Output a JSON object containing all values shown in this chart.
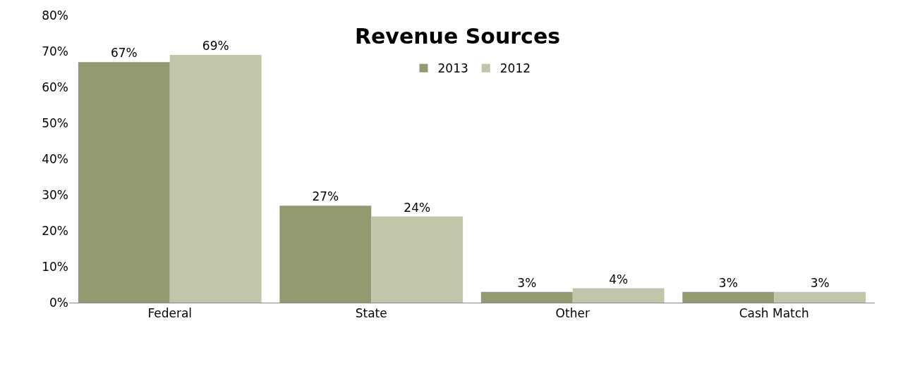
{
  "chart_data": {
    "type": "bar",
    "title": "Revenue Sources",
    "categories": [
      "Federal",
      "State",
      "Other",
      "Cash Match"
    ],
    "series": [
      {
        "name": "2013",
        "color": "#939a70",
        "values": [
          67,
          27,
          3,
          3
        ],
        "value_labels": [
          "67%",
          "27%",
          "3%",
          "3%"
        ]
      },
      {
        "name": "2012",
        "color": "#c2c5aa",
        "values": [
          69,
          24,
          4,
          3
        ],
        "value_labels": [
          "69%",
          "24%",
          "4%",
          "3%"
        ]
      }
    ],
    "ylim": [
      0,
      80
    ],
    "yticks": [
      {
        "value": 0,
        "label": "0%"
      },
      {
        "value": 10,
        "label": "10%"
      },
      {
        "value": 20,
        "label": "20%"
      },
      {
        "value": 30,
        "label": "30%"
      },
      {
        "value": 40,
        "label": "40%"
      },
      {
        "value": 50,
        "label": "50%"
      },
      {
        "value": 60,
        "label": "60%"
      },
      {
        "value": 70,
        "label": "70%"
      },
      {
        "value": 80,
        "label": "80%"
      }
    ],
    "grid": false,
    "legend": "top"
  }
}
